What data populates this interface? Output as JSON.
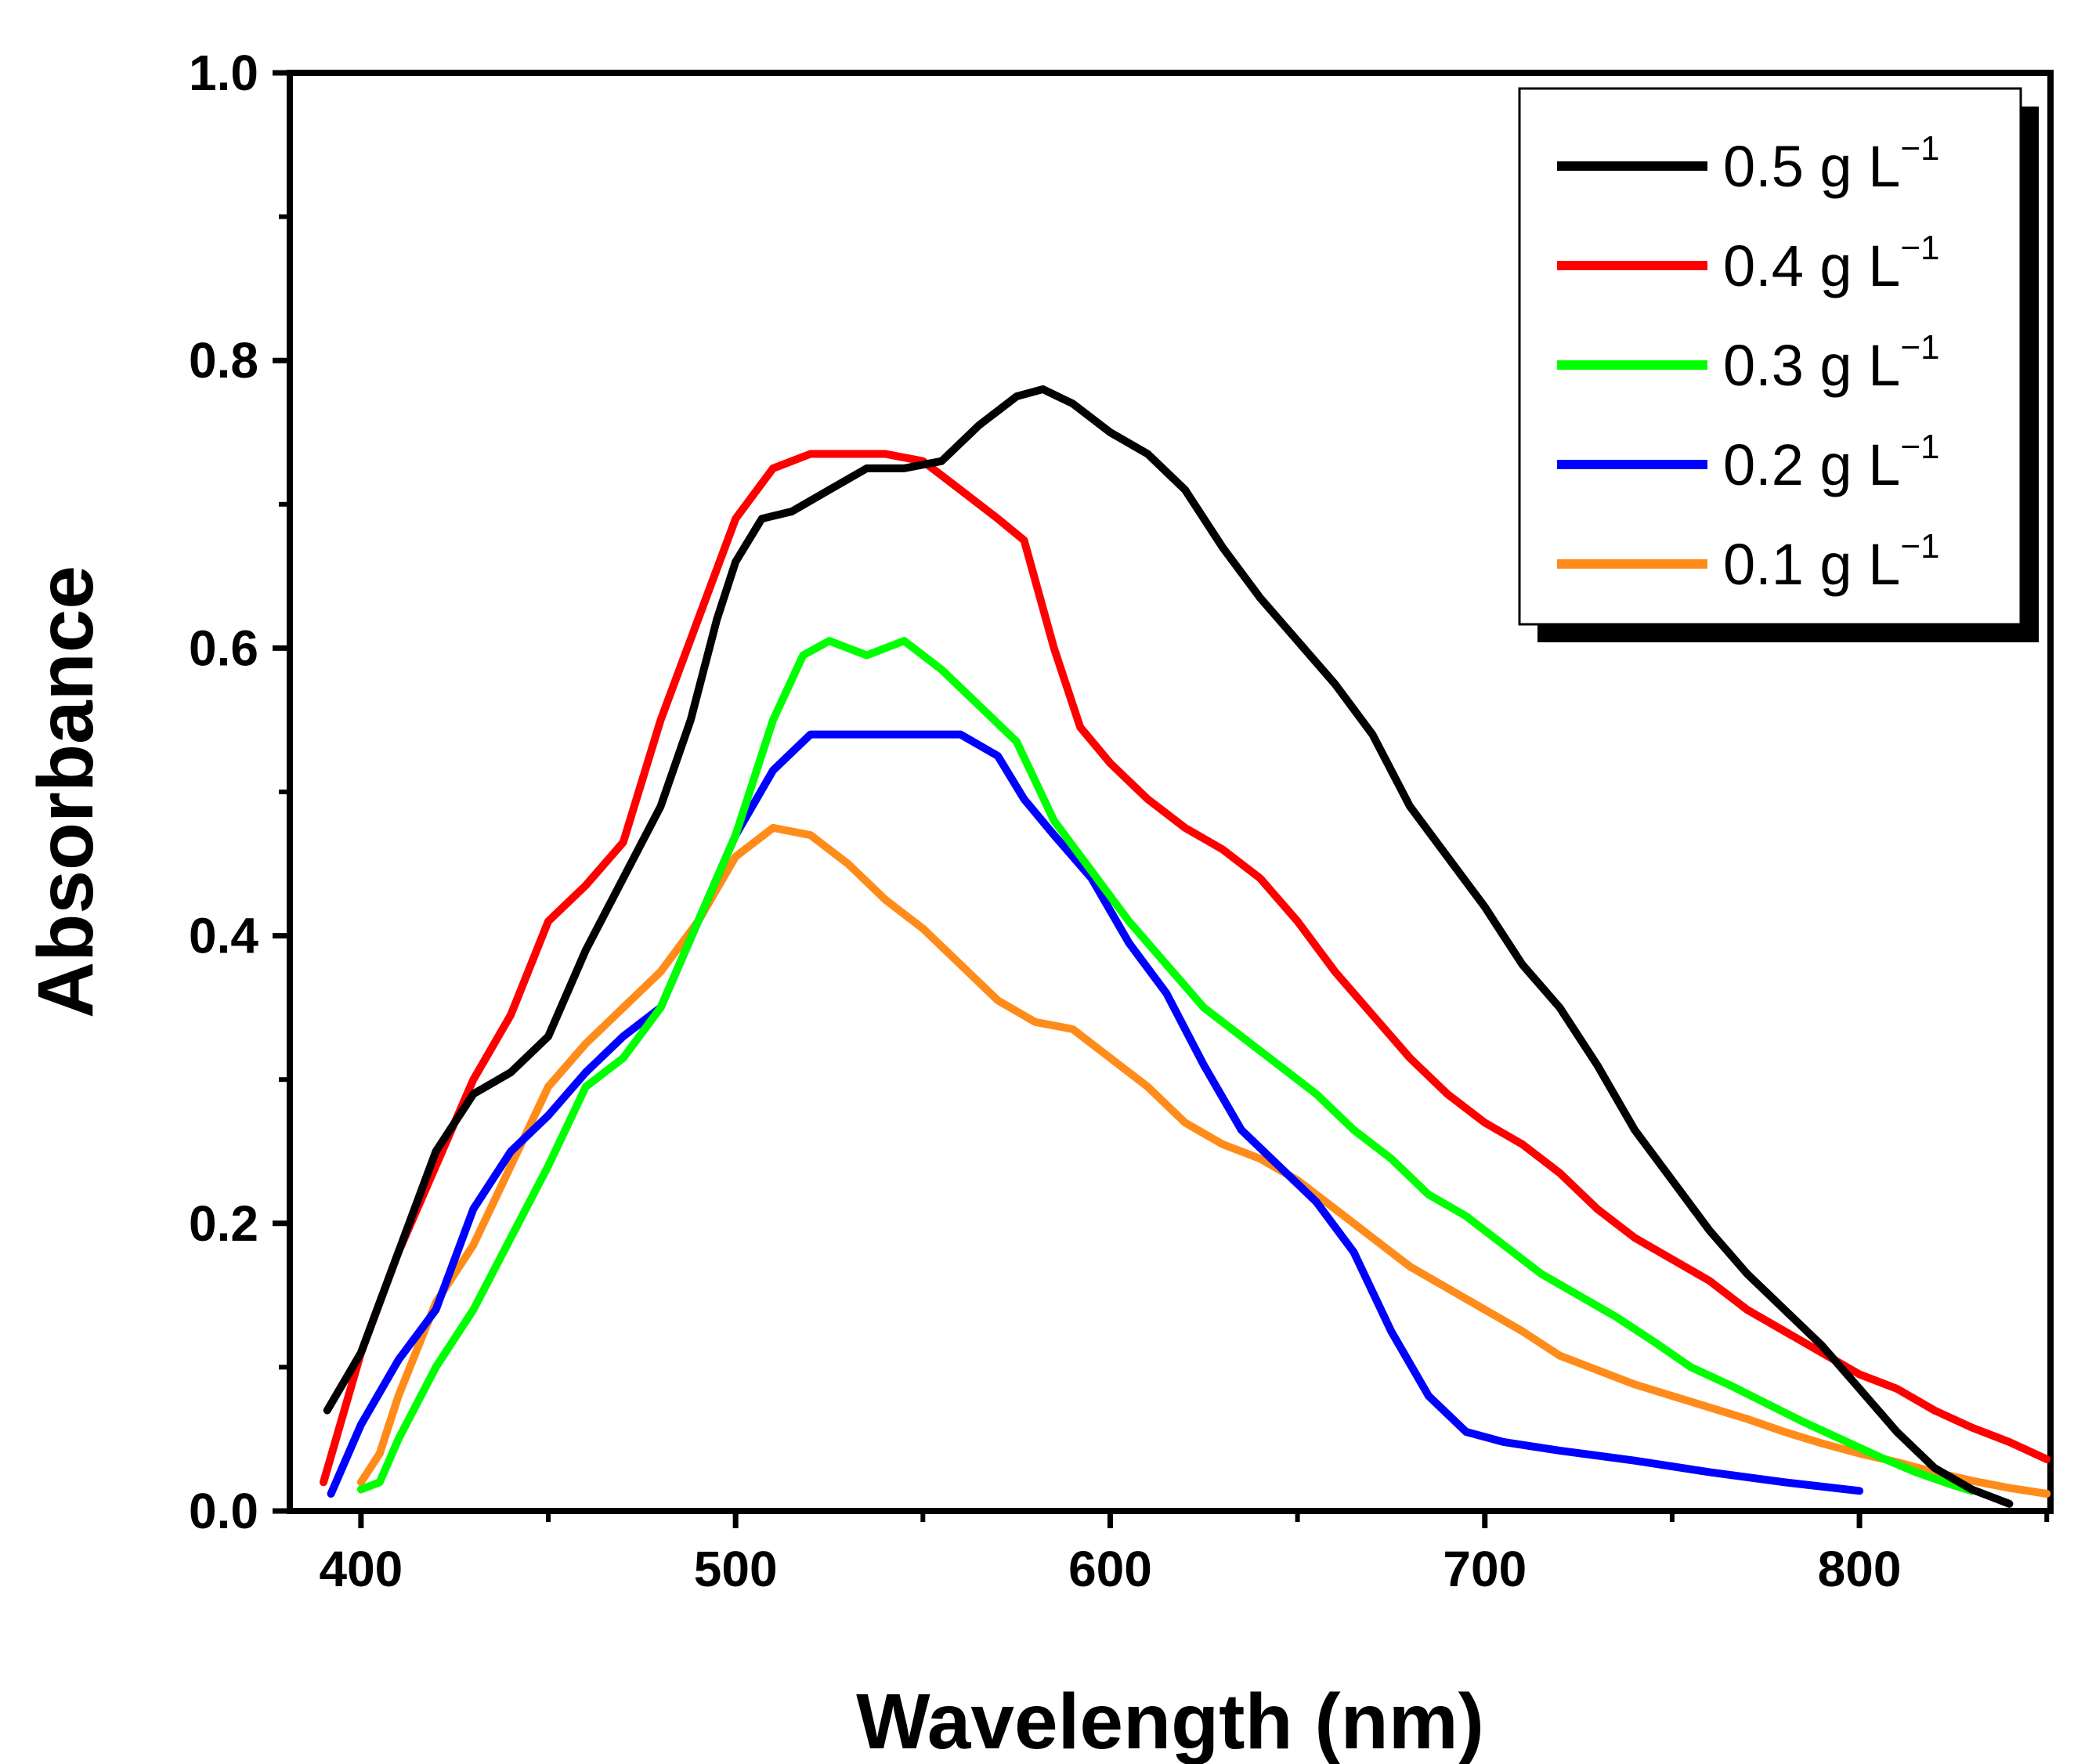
{
  "chart_data": {
    "type": "line",
    "xlabel": "Wavelength (nm)",
    "ylabel": "Absorbance",
    "xlim": [
      381,
      851
    ],
    "ylim": [
      0.0,
      1.0
    ],
    "x_ticks": [
      400,
      500,
      600,
      700,
      800
    ],
    "x_tick_labels": [
      "400",
      "500",
      "600",
      "700",
      "800"
    ],
    "y_ticks": [
      0.0,
      0.2,
      0.4,
      0.6,
      0.8,
      1.0
    ],
    "y_tick_labels": [
      "0.0",
      "0.2",
      "0.4",
      "0.6",
      "0.8",
      "1.0"
    ],
    "legend_position": "top-right",
    "series": [
      {
        "name": "0.5 g L",
        "unit_sup": "−1",
        "color": "#000000",
        "points": [
          [
            391,
            0.07
          ],
          [
            400,
            0.11
          ],
          [
            410,
            0.18
          ],
          [
            420,
            0.25
          ],
          [
            430,
            0.29
          ],
          [
            440,
            0.305
          ],
          [
            450,
            0.33
          ],
          [
            460,
            0.39
          ],
          [
            470,
            0.44
          ],
          [
            480,
            0.49
          ],
          [
            488,
            0.55
          ],
          [
            495,
            0.62
          ],
          [
            500,
            0.66
          ],
          [
            507,
            0.69
          ],
          [
            515,
            0.695
          ],
          [
            525,
            0.71
          ],
          [
            535,
            0.725
          ],
          [
            545,
            0.725
          ],
          [
            555,
            0.73
          ],
          [
            565,
            0.755
          ],
          [
            575,
            0.775
          ],
          [
            582,
            0.78
          ],
          [
            590,
            0.77
          ],
          [
            600,
            0.75
          ],
          [
            610,
            0.735
          ],
          [
            620,
            0.71
          ],
          [
            630,
            0.67
          ],
          [
            640,
            0.635
          ],
          [
            650,
            0.605
          ],
          [
            660,
            0.575
          ],
          [
            670,
            0.54
          ],
          [
            680,
            0.49
          ],
          [
            690,
            0.455
          ],
          [
            700,
            0.42
          ],
          [
            710,
            0.38
          ],
          [
            720,
            0.35
          ],
          [
            730,
            0.31
          ],
          [
            740,
            0.265
          ],
          [
            750,
            0.23
          ],
          [
            760,
            0.195
          ],
          [
            770,
            0.165
          ],
          [
            780,
            0.14
          ],
          [
            790,
            0.115
          ],
          [
            800,
            0.085
          ],
          [
            810,
            0.055
          ],
          [
            820,
            0.03
          ],
          [
            830,
            0.015
          ],
          [
            840,
            0.005
          ]
        ]
      },
      {
        "name": "0.4 g L",
        "unit_sup": "−1",
        "color": "#ff0000",
        "points": [
          [
            390,
            0.02
          ],
          [
            400,
            0.11
          ],
          [
            410,
            0.18
          ],
          [
            420,
            0.24
          ],
          [
            430,
            0.3
          ],
          [
            440,
            0.345
          ],
          [
            450,
            0.41
          ],
          [
            460,
            0.435
          ],
          [
            470,
            0.465
          ],
          [
            480,
            0.55
          ],
          [
            490,
            0.62
          ],
          [
            500,
            0.69
          ],
          [
            510,
            0.725
          ],
          [
            520,
            0.735
          ],
          [
            530,
            0.735
          ],
          [
            540,
            0.735
          ],
          [
            550,
            0.73
          ],
          [
            560,
            0.71
          ],
          [
            570,
            0.69
          ],
          [
            577,
            0.675
          ],
          [
            585,
            0.6
          ],
          [
            592,
            0.545
          ],
          [
            600,
            0.52
          ],
          [
            610,
            0.495
          ],
          [
            620,
            0.475
          ],
          [
            630,
            0.46
          ],
          [
            640,
            0.44
          ],
          [
            650,
            0.41
          ],
          [
            660,
            0.375
          ],
          [
            670,
            0.345
          ],
          [
            680,
            0.315
          ],
          [
            690,
            0.29
          ],
          [
            700,
            0.27
          ],
          [
            710,
            0.255
          ],
          [
            720,
            0.235
          ],
          [
            730,
            0.21
          ],
          [
            740,
            0.19
          ],
          [
            750,
            0.175
          ],
          [
            760,
            0.16
          ],
          [
            770,
            0.14
          ],
          [
            780,
            0.125
          ],
          [
            790,
            0.11
          ],
          [
            800,
            0.095
          ],
          [
            810,
            0.085
          ],
          [
            820,
            0.07
          ],
          [
            830,
            0.058
          ],
          [
            840,
            0.048
          ],
          [
            850,
            0.036
          ]
        ]
      },
      {
        "name": "0.3 g L",
        "unit_sup": "−1",
        "color": "#00ff00",
        "points": [
          [
            400,
            0.015
          ],
          [
            405,
            0.02
          ],
          [
            410,
            0.05
          ],
          [
            420,
            0.1
          ],
          [
            430,
            0.14
          ],
          [
            440,
            0.19
          ],
          [
            450,
            0.24
          ],
          [
            460,
            0.295
          ],
          [
            470,
            0.315
          ],
          [
            480,
            0.35
          ],
          [
            490,
            0.41
          ],
          [
            500,
            0.47
          ],
          [
            510,
            0.55
          ],
          [
            518,
            0.595
          ],
          [
            525,
            0.605
          ],
          [
            535,
            0.595
          ],
          [
            545,
            0.605
          ],
          [
            555,
            0.585
          ],
          [
            565,
            0.56
          ],
          [
            575,
            0.535
          ],
          [
            585,
            0.48
          ],
          [
            595,
            0.445
          ],
          [
            605,
            0.41
          ],
          [
            615,
            0.38
          ],
          [
            625,
            0.35
          ],
          [
            635,
            0.33
          ],
          [
            645,
            0.31
          ],
          [
            655,
            0.29
          ],
          [
            665,
            0.265
          ],
          [
            675,
            0.245
          ],
          [
            685,
            0.22
          ],
          [
            695,
            0.205
          ],
          [
            705,
            0.185
          ],
          [
            715,
            0.165
          ],
          [
            725,
            0.15
          ],
          [
            735,
            0.135
          ],
          [
            745,
            0.118
          ],
          [
            755,
            0.1
          ],
          [
            765,
            0.088
          ],
          [
            775,
            0.075
          ],
          [
            785,
            0.062
          ],
          [
            795,
            0.05
          ],
          [
            805,
            0.038
          ],
          [
            815,
            0.027
          ],
          [
            825,
            0.018
          ],
          [
            830,
            0.014
          ]
        ]
      },
      {
        "name": "0.2 g L",
        "unit_sup": "−1",
        "color": "#0000ff",
        "points": [
          [
            392,
            0.012
          ],
          [
            400,
            0.06
          ],
          [
            410,
            0.105
          ],
          [
            420,
            0.14
          ],
          [
            430,
            0.21
          ],
          [
            440,
            0.25
          ],
          [
            450,
            0.275
          ],
          [
            460,
            0.305
          ],
          [
            470,
            0.33
          ],
          [
            480,
            0.35
          ],
          [
            490,
            0.41
          ],
          [
            500,
            0.47
          ],
          [
            510,
            0.515
          ],
          [
            520,
            0.54
          ],
          [
            530,
            0.54
          ],
          [
            540,
            0.54
          ],
          [
            550,
            0.54
          ],
          [
            560,
            0.54
          ],
          [
            570,
            0.525
          ],
          [
            577,
            0.495
          ],
          [
            585,
            0.47
          ],
          [
            595,
            0.44
          ],
          [
            605,
            0.395
          ],
          [
            615,
            0.36
          ],
          [
            625,
            0.31
          ],
          [
            635,
            0.265
          ],
          [
            645,
            0.24
          ],
          [
            655,
            0.215
          ],
          [
            665,
            0.18
          ],
          [
            675,
            0.125
          ],
          [
            685,
            0.08
          ],
          [
            695,
            0.055
          ],
          [
            705,
            0.048
          ],
          [
            720,
            0.042
          ],
          [
            740,
            0.035
          ],
          [
            760,
            0.027
          ],
          [
            780,
            0.02
          ],
          [
            800,
            0.014
          ]
        ]
      },
      {
        "name": "0.1 g L",
        "unit_sup": "−1",
        "color": "#ff8c1a",
        "points": [
          [
            400,
            0.02
          ],
          [
            405,
            0.04
          ],
          [
            410,
            0.08
          ],
          [
            420,
            0.145
          ],
          [
            430,
            0.185
          ],
          [
            440,
            0.24
          ],
          [
            450,
            0.295
          ],
          [
            460,
            0.325
          ],
          [
            470,
            0.35
          ],
          [
            480,
            0.375
          ],
          [
            490,
            0.41
          ],
          [
            500,
            0.455
          ],
          [
            510,
            0.475
          ],
          [
            520,
            0.47
          ],
          [
            530,
            0.45
          ],
          [
            540,
            0.425
          ],
          [
            550,
            0.405
          ],
          [
            560,
            0.38
          ],
          [
            570,
            0.355
          ],
          [
            580,
            0.34
          ],
          [
            590,
            0.335
          ],
          [
            600,
            0.315
          ],
          [
            610,
            0.295
          ],
          [
            620,
            0.27
          ],
          [
            630,
            0.255
          ],
          [
            640,
            0.245
          ],
          [
            650,
            0.23
          ],
          [
            660,
            0.21
          ],
          [
            670,
            0.19
          ],
          [
            680,
            0.17
          ],
          [
            690,
            0.155
          ],
          [
            700,
            0.14
          ],
          [
            710,
            0.125
          ],
          [
            720,
            0.108
          ],
          [
            730,
            0.098
          ],
          [
            740,
            0.088
          ],
          [
            750,
            0.08
          ],
          [
            760,
            0.072
          ],
          [
            770,
            0.064
          ],
          [
            780,
            0.055
          ],
          [
            790,
            0.047
          ],
          [
            800,
            0.04
          ],
          [
            810,
            0.034
          ],
          [
            820,
            0.027
          ],
          [
            830,
            0.021
          ],
          [
            840,
            0.016
          ],
          [
            850,
            0.012
          ]
        ]
      }
    ]
  }
}
